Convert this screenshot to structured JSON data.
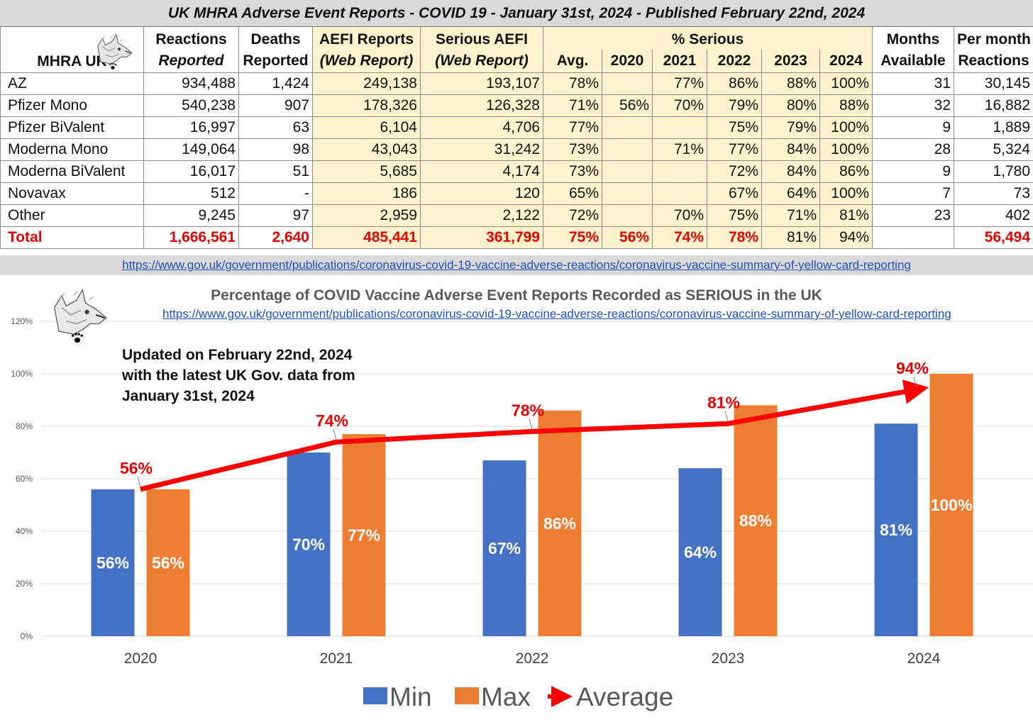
{
  "table": {
    "title": "UK MHRA Adverse Event Reports -  COVID 19 - January 31st, 2024 - Published February 22nd, 2024",
    "header": {
      "mhra_label": "MHRA UK",
      "reactions": [
        "Reactions",
        "Reported"
      ],
      "deaths": [
        "Deaths",
        "Reported"
      ],
      "aefi": [
        "AEFI Reports",
        "(Web Report)"
      ],
      "serious": [
        "Serious AEFI",
        "(Web Report)"
      ],
      "pct_serious": "% Serious",
      "pct_cols": [
        "Avg.",
        "2020",
        "2021",
        "2022",
        "2023",
        "2024"
      ],
      "months": [
        "Months",
        "Available"
      ],
      "per_month": [
        "Per month",
        "Reactions"
      ]
    },
    "rows": [
      {
        "name": "AZ",
        "reactions": "934,488",
        "deaths": "1,424",
        "aefi": "249,138",
        "serious": "193,107",
        "avg": "78%",
        "y2020": "",
        "y2021": "77%",
        "y2022": "86%",
        "y2023": "88%",
        "y2024": "100%",
        "months": "31",
        "per_month": "30,145"
      },
      {
        "name": "Pfizer Mono",
        "reactions": "540,238",
        "deaths": "907",
        "aefi": "178,326",
        "serious": "126,328",
        "avg": "71%",
        "y2020": "56%",
        "y2021": "70%",
        "y2022": "79%",
        "y2023": "80%",
        "y2024": "88%",
        "months": "32",
        "per_month": "16,882"
      },
      {
        "name": "Pfizer BiValent",
        "reactions": "16,997",
        "deaths": "63",
        "aefi": "6,104",
        "serious": "4,706",
        "avg": "77%",
        "y2020": "",
        "y2021": "",
        "y2022": "75%",
        "y2023": "79%",
        "y2024": "100%",
        "months": "9",
        "per_month": "1,889"
      },
      {
        "name": "Moderna Mono",
        "reactions": "149,064",
        "deaths": "98",
        "aefi": "43,043",
        "serious": "31,242",
        "avg": "73%",
        "y2020": "",
        "y2021": "71%",
        "y2022": "77%",
        "y2023": "84%",
        "y2024": "100%",
        "months": "28",
        "per_month": "5,324"
      },
      {
        "name": "Moderna BiValent",
        "reactions": "16,017",
        "deaths": "51",
        "aefi": "5,685",
        "serious": "4,174",
        "avg": "73%",
        "y2020": "",
        "y2021": "",
        "y2022": "72%",
        "y2023": "84%",
        "y2024": "86%",
        "months": "9",
        "per_month": "1,780"
      },
      {
        "name": "Novavax",
        "reactions": "512",
        "deaths": "-",
        "aefi": "186",
        "serious": "120",
        "avg": "65%",
        "y2020": "",
        "y2021": "",
        "y2022": "67%",
        "y2023": "64%",
        "y2024": "100%",
        "months": "7",
        "per_month": "73"
      },
      {
        "name": "Other",
        "reactions": "9,245",
        "deaths": "97",
        "aefi": "2,959",
        "serious": "2,122",
        "avg": "72%",
        "y2020": "",
        "y2021": "70%",
        "y2022": "75%",
        "y2023": "71%",
        "y2024": "81%",
        "months": "23",
        "per_month": "402"
      }
    ],
    "total": {
      "name": "Total",
      "reactions": "1,666,561",
      "deaths": "2,640",
      "aefi": "485,441",
      "serious": "361,799",
      "avg": "75%",
      "y2020": "56%",
      "y2021": "74%",
      "y2022": "78%",
      "y2023": "81%",
      "y2024": "94%",
      "months": "",
      "per_month": "56,494"
    },
    "source_link": "https://www.gov.uk/government/publications/coronavirus-covid-19-vaccine-adverse-reactions/coronavirus-vaccine-summary-of-yellow-card-reporting"
  },
  "chart_data": {
    "type": "bar",
    "title": "Percentage of COVID Vaccine Adverse Event Reports Recorded as SERIOUS in the UK",
    "source_link": "https://www.gov.uk/government/publications/coronavirus-covid-19-vaccine-adverse-reactions/coronavirus-vaccine-summary-of-yellow-card-reporting",
    "annotation": [
      "Updated on February 22nd, 2024",
      "with the latest UK Gov. data from",
      "January 31st, 2024"
    ],
    "categories": [
      "2020",
      "2021",
      "2022",
      "2023",
      "2024"
    ],
    "series": [
      {
        "name": "Min",
        "type": "bar",
        "color": "#4472c4",
        "values": [
          56,
          70,
          67,
          64,
          81
        ],
        "labels": [
          "56%",
          "70%",
          "67%",
          "64%",
          "81%"
        ]
      },
      {
        "name": "Max",
        "type": "bar",
        "color": "#ed7d31",
        "values": [
          56,
          77,
          86,
          88,
          100
        ],
        "labels": [
          "56%",
          "77%",
          "86%",
          "88%",
          "100%"
        ]
      },
      {
        "name": "Average",
        "type": "line",
        "color": "#ff0000",
        "values": [
          56,
          74,
          78,
          81,
          94
        ],
        "labels": [
          "56%",
          "74%",
          "78%",
          "81%",
          "94%"
        ]
      }
    ],
    "y_ticks": [
      "0%",
      "20%",
      "40%",
      "60%",
      "80%",
      "100%",
      "120%"
    ],
    "ylim": [
      0,
      120
    ],
    "grid": true,
    "legend": "bottom"
  }
}
